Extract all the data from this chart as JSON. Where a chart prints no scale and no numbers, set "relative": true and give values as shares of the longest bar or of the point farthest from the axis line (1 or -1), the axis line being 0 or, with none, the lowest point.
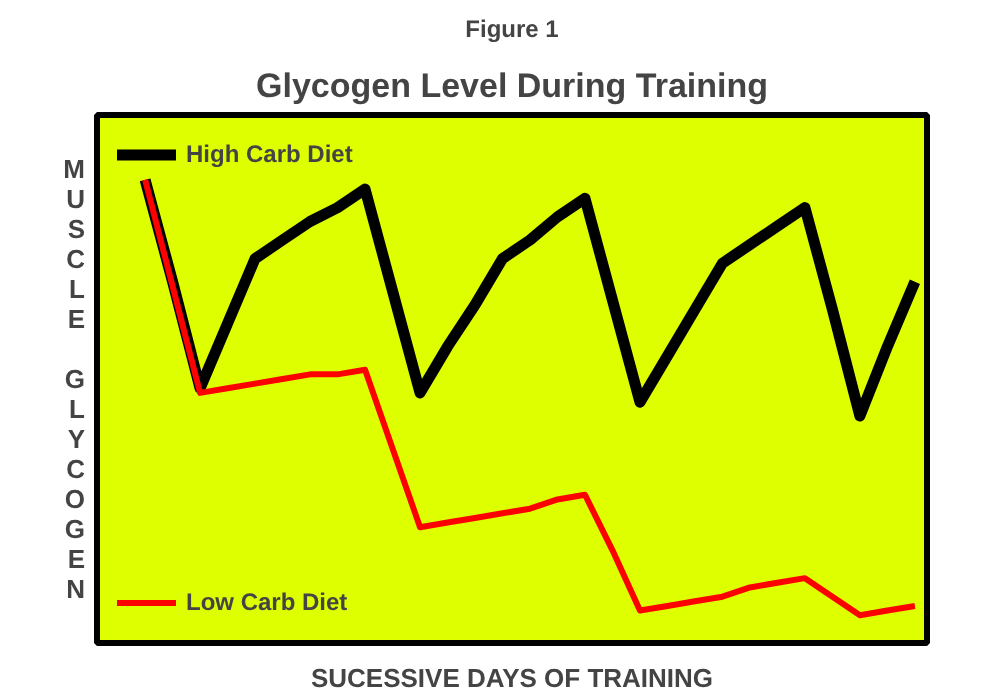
{
  "chart_data": {
    "type": "line",
    "title": "Glycogen Level During Training",
    "annotations": [
      "Figure 1"
    ],
    "xlabel": "SUCESSIVE DAYS OF TRAINING",
    "ylabel": "MUSCLE GLYCOGEN",
    "relative": true,
    "tick_labels": false,
    "grid": false,
    "legend": "left",
    "marker": "none",
    "line_style": "solid",
    "categories": [
      null,
      null,
      null,
      null,
      null,
      null,
      null,
      null,
      null,
      null,
      null,
      null,
      null,
      null,
      null,
      null,
      null,
      null,
      null,
      null,
      null,
      null,
      null,
      null,
      null,
      null,
      null,
      null,
      null
    ],
    "series": [
      {
        "name": "High Carb Diet",
        "color": "#000000",
        "values": [
          1,
          0.78,
          0.55,
          0.69,
          0.83,
          0.87,
          0.91,
          0.94,
          0.98,
          0.76,
          0.54,
          0.64,
          0.73,
          0.83,
          0.87,
          0.92,
          0.96,
          0.74,
          0.52,
          0.62,
          0.72,
          0.82,
          0.86,
          0.9,
          0.94,
          0.72,
          0.49,
          0.64,
          0.78
        ]
      },
      {
        "name": "Low Carb Diet",
        "color": "#ff0000",
        "values": [
          1,
          0.77,
          0.54,
          0.55,
          0.56,
          0.57,
          0.58,
          0.58,
          0.59,
          0.42,
          0.25,
          0.26,
          0.27,
          0.28,
          0.29,
          0.31,
          0.32,
          0.2,
          0.07,
          0.08,
          0.09,
          0.1,
          0.12,
          0.13,
          0.14,
          0.1,
          0.06,
          0.07,
          0.08
        ]
      }
    ]
  }
}
